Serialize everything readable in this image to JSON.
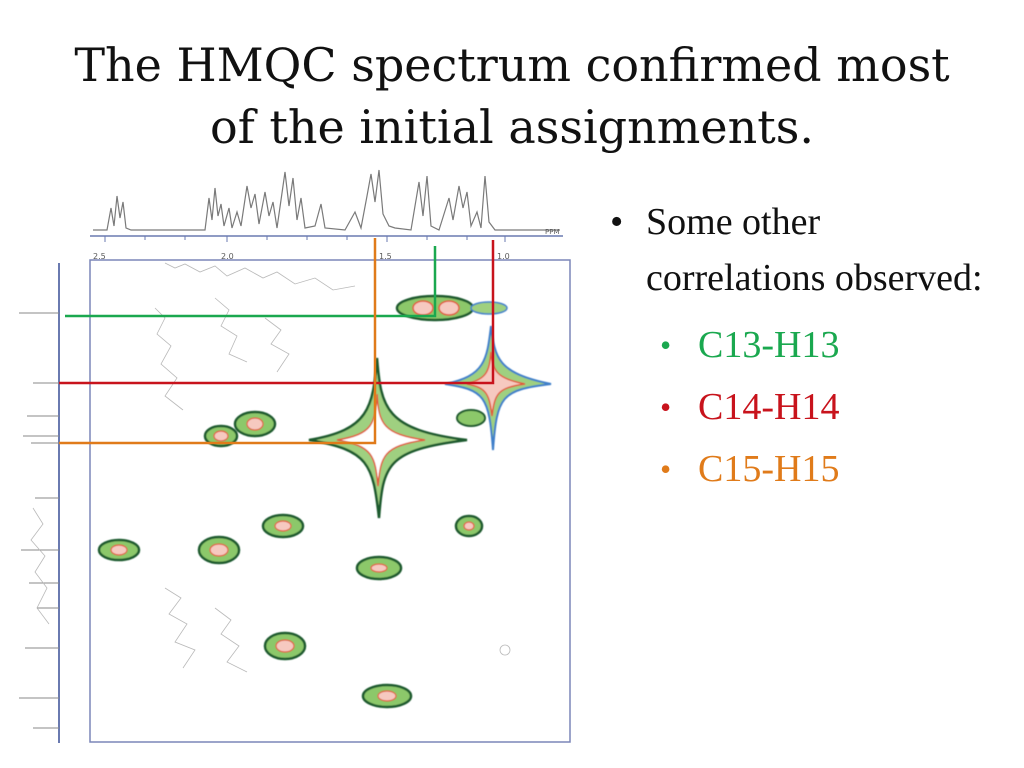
{
  "slide": {
    "title_line1": "The HMQC spectrum confirmed most",
    "title_line2": "of the initial assignments."
  },
  "bullets": {
    "main": "Some other correlations observed:",
    "items": [
      {
        "label": "C13-H13",
        "color": "#1aa84f"
      },
      {
        "label": "C14-H14",
        "color": "#c8131c"
      },
      {
        "label": "C15-H15",
        "color": "#e07b1a"
      }
    ]
  },
  "spectrum": {
    "axis_top_label": "PPM",
    "tick_left": "2.5",
    "tick_mid": "2.0",
    "tick_right1": "1.5",
    "tick_right2": "1.0",
    "contour_colors": [
      "#1f5a2e",
      "#3f7fc9",
      "#8cc86a",
      "#e0583a"
    ],
    "line_colors": {
      "c13": "#1aa84f",
      "c14": "#c8131c",
      "c15": "#e07b1a"
    }
  }
}
